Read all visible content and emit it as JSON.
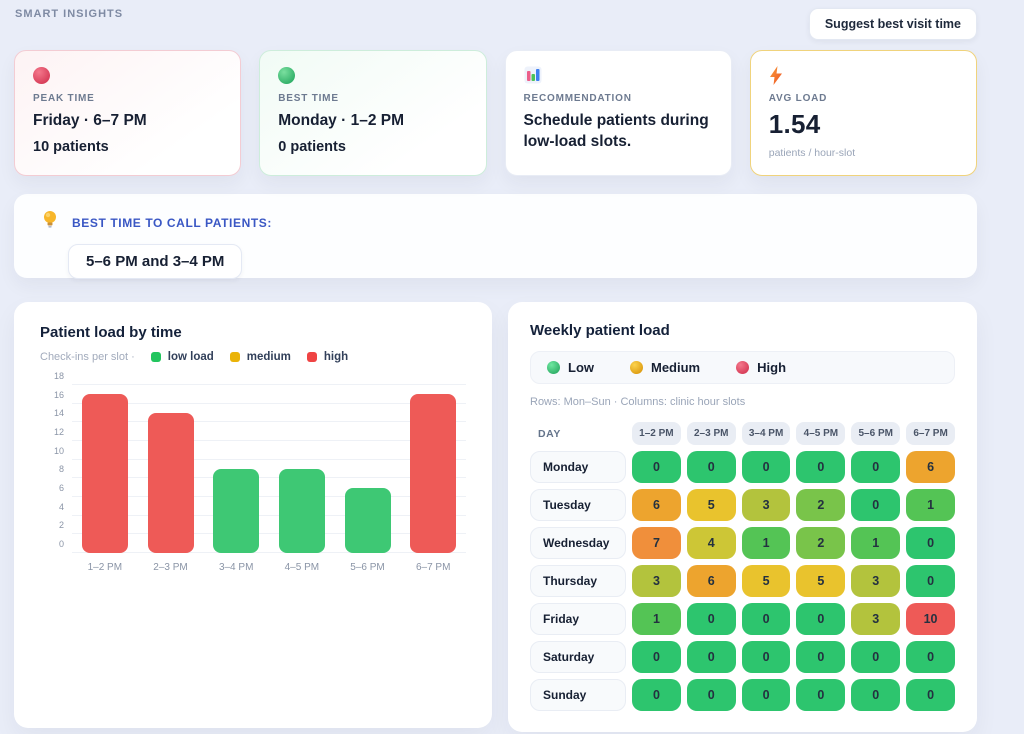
{
  "page": {
    "title": "SMART INSIGHTS",
    "suggest_button": "Suggest best visit time"
  },
  "cards": [
    {
      "id": "peak-time",
      "icon": "red-dot",
      "label": "PEAK TIME",
      "title": "Friday · 6–7 PM",
      "subtitle": "10 patients"
    },
    {
      "id": "best-time",
      "icon": "green-dot",
      "label": "BEST TIME",
      "title": "Monday · 1–2 PM",
      "subtitle": "0 patients"
    },
    {
      "id": "recommendation",
      "icon": "bar-chart",
      "label": "RECOMMENDATION",
      "title": "Schedule patients during low-load slots."
    },
    {
      "id": "avg-load",
      "icon": "lightning",
      "label": "AVG LOAD",
      "value": "1.54",
      "unit": "patients / hour-slot"
    }
  ],
  "call_banner": {
    "label": "BEST TIME TO CALL PATIENTS:",
    "value": "5–6 PM and 3–4 PM"
  },
  "chart_data": [
    {
      "type": "bar",
      "title": "Patient load by time",
      "subtitle": "Check-ins per slot ·",
      "legend": [
        {
          "label": "low load",
          "color": "#22c55e"
        },
        {
          "label": "medium",
          "color": "#eab308"
        },
        {
          "label": "high",
          "color": "#ef4444"
        }
      ],
      "legend_position": "top",
      "categories": [
        "1–2 PM",
        "2–3 PM",
        "3–4 PM",
        "4–5 PM",
        "5–6 PM",
        "6–7 PM"
      ],
      "values": [
        17,
        15,
        9,
        9,
        7,
        17
      ],
      "bar_colors": [
        "#ee5a57",
        "#ee5a57",
        "#3ec874",
        "#3ec874",
        "#3ec874",
        "#ee5a57"
      ],
      "xlabel": "",
      "ylabel": "",
      "ylim": [
        0,
        18
      ],
      "ytick_step": 2,
      "grid": true
    },
    {
      "type": "heatmap",
      "title": "Weekly patient load",
      "legend": [
        {
          "label": "Low",
          "color_inner": "#6ee7a0",
          "color": "#2fae67"
        },
        {
          "label": "Medium",
          "color_inner": "#fcd34d",
          "color": "#dd9c12"
        },
        {
          "label": "High",
          "color_inner": "#f4788c",
          "color": "#d63b57"
        }
      ],
      "note": "Rows: Mon–Sun · Columns: clinic hour slots",
      "day_header": "DAY",
      "columns": [
        "1–2 PM",
        "2–3 PM",
        "3–4 PM",
        "4–5 PM",
        "5–6 PM",
        "6–7 PM"
      ],
      "rows": [
        {
          "day": "Monday",
          "values": [
            0,
            0,
            0,
            0,
            0,
            6
          ]
        },
        {
          "day": "Tuesday",
          "values": [
            6,
            5,
            3,
            2,
            0,
            1
          ]
        },
        {
          "day": "Wednesday",
          "values": [
            7,
            4,
            1,
            2,
            1,
            0
          ]
        },
        {
          "day": "Thursday",
          "values": [
            3,
            6,
            5,
            5,
            3,
            0
          ]
        },
        {
          "day": "Friday",
          "values": [
            1,
            0,
            0,
            0,
            3,
            10
          ]
        },
        {
          "day": "Saturday",
          "values": [
            0,
            0,
            0,
            0,
            0,
            0
          ]
        },
        {
          "day": "Sunday",
          "values": [
            0,
            0,
            0,
            0,
            0,
            0
          ]
        }
      ],
      "value_colors": {
        "0": "#2dc56e",
        "1": "#54c455",
        "2": "#79c44a",
        "3": "#b3c33d",
        "4": "#cdc636",
        "5": "#e9c32d",
        "6": "#eda42e",
        "7": "#f08f3b",
        "10": "#ee5a57"
      }
    }
  ]
}
